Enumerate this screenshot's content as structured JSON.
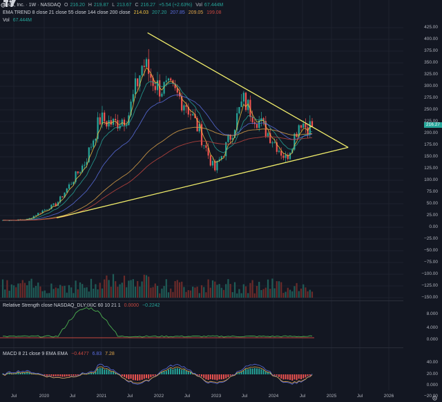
{
  "header": {
    "symbol": "Tesla, Inc. · 1W · NASDAQ",
    "ohlc": [
      {
        "k": "O",
        "v": "216.20"
      },
      {
        "k": "H",
        "v": "219.87"
      },
      {
        "k": "L",
        "v": "213.67"
      },
      {
        "k": "C",
        "v": "216.27"
      }
    ],
    "change": "+5.54 (+2.63%)",
    "vol_label": "Vol",
    "vol_value": "67.444M"
  },
  "ema": {
    "label": "EMA TREND  8 close 21 close 55 close 144 close 200 close",
    "values": [
      "214.03",
      "207.20",
      "207.85",
      "209.05",
      "199.08"
    ],
    "colors": [
      "#f5c542",
      "#26a69a",
      "#5b6ee1",
      "#e0a64a",
      "#c7473f"
    ]
  },
  "volume_label": "Vol",
  "volume_value": "67.444M",
  "price_tag": "216.27",
  "price_tag_sub": "",
  "rs": {
    "label": "Relative Strength  close NASDAQ_DLY:IXIC 60 10 21 1",
    "v1": "0.0000",
    "v2": "−0.2242"
  },
  "macd": {
    "label": "MACD  8 21 close 9 EMA EMA",
    "v1": "−0.4477",
    "v2": "6.83",
    "v3": "7.28"
  },
  "price_axis": [
    "425.00",
    "400.00",
    "375.00",
    "350.00",
    "325.00",
    "300.00",
    "275.00",
    "250.00",
    "225.00",
    "200.00",
    "175.00",
    "150.00",
    "125.00",
    "100.00",
    "75.00",
    "50.00",
    "25.00",
    "0.00",
    "−25.00",
    "−50.00",
    "−75.00",
    "−100.00",
    "−125.00",
    "−150.00"
  ],
  "rs_axis": [
    "8.000",
    "4.000",
    "0.000"
  ],
  "macd_axis": [
    "40.00",
    "20.00",
    "0.000",
    "−20.00"
  ],
  "x_axis": [
    "Jul",
    "2020",
    "Jul",
    "2021",
    "Jul",
    "2022",
    "Jul",
    "2023",
    "Jul",
    "2024",
    "Jul",
    "2025",
    "Jul",
    "2026"
  ],
  "chart_data": {
    "type": "candlestick",
    "title": "Tesla, Inc. · 1W · NASDAQ",
    "x": [
      "2019-07",
      "2019-10",
      "2020-01",
      "2020-04",
      "2020-07",
      "2020-10",
      "2021-01",
      "2021-04",
      "2021-07",
      "2021-10",
      "2022-01",
      "2022-04",
      "2022-07",
      "2022-10",
      "2023-01",
      "2023-04",
      "2023-07",
      "2023-10",
      "2024-01",
      "2024-04",
      "2024-07",
      "2024-08"
    ],
    "close": [
      15,
      17,
      35,
      50,
      95,
      140,
      230,
      220,
      240,
      350,
      300,
      290,
      265,
      200,
      120,
      185,
      270,
      230,
      190,
      145,
      230,
      216
    ],
    "ylim": [
      -150,
      430
    ],
    "trendlines": [
      {
        "name": "upper",
        "from": [
          "2021-11",
          414
        ],
        "to": [
          "2025-05",
          170
        ]
      },
      {
        "name": "lower",
        "from": [
          "2020-04",
          20
        ],
        "to": [
          "2025-05",
          170
        ]
      }
    ]
  }
}
